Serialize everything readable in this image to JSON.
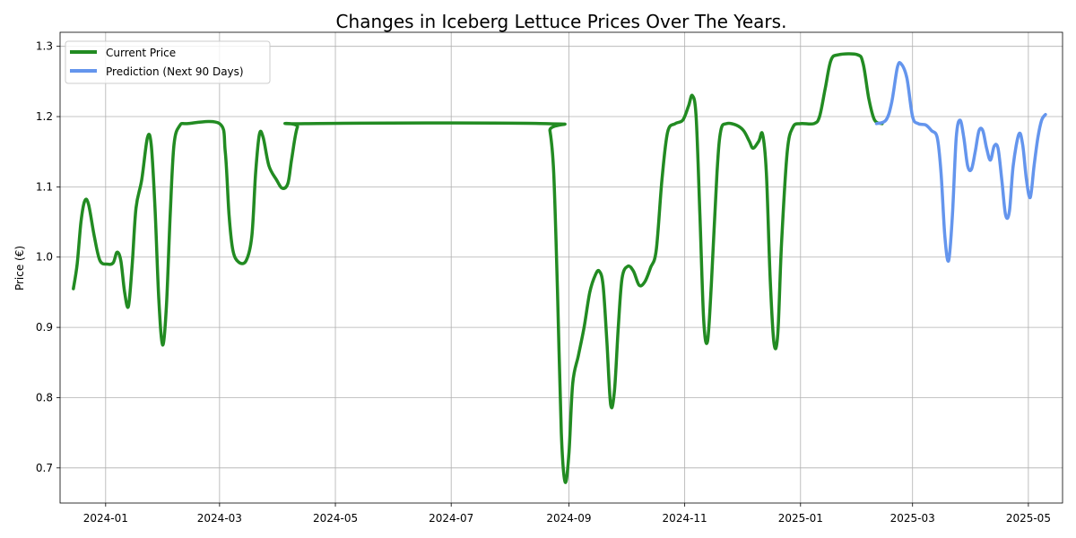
{
  "chart_data": {
    "type": "line",
    "title": "Changes in Iceberg Lettuce Prices Over The Years.",
    "xlabel": "",
    "ylabel": "Price (€)",
    "x_tick_labels": [
      "2024-01",
      "2024-03",
      "2024-05",
      "2024-07",
      "2024-09",
      "2024-11",
      "2025-01",
      "2025-03",
      "2025-05"
    ],
    "x_ticks": [
      "2024-01-01",
      "2024-03-01",
      "2024-05-01",
      "2024-07-01",
      "2024-09-01",
      "2024-11-01",
      "2025-01-01",
      "2025-03-01",
      "2025-05-01"
    ],
    "xlim": [
      "2023-12-08",
      "2025-05-19"
    ],
    "y_ticks": [
      0.7,
      0.8,
      0.9,
      1.0,
      1.1,
      1.2,
      1.3
    ],
    "y_tick_labels": [
      "0.7",
      "0.8",
      "0.9",
      "1.0",
      "1.1",
      "1.2",
      "1.3"
    ],
    "ylim": [
      0.65,
      1.32
    ],
    "grid": true,
    "legend_position": "top-left",
    "series": [
      {
        "name": "Current Price",
        "color": "#228B22",
        "points": [
          [
            "2023-12-15",
            0.955
          ],
          [
            "2023-12-17",
            0.99
          ],
          [
            "2023-12-19",
            1.05
          ],
          [
            "2023-12-21",
            1.08
          ],
          [
            "2023-12-23",
            1.075
          ],
          [
            "2023-12-26",
            1.03
          ],
          [
            "2023-12-29",
            0.995
          ],
          [
            "2024-01-02",
            0.99
          ],
          [
            "2024-01-05",
            0.992
          ],
          [
            "2024-01-07",
            1.007
          ],
          [
            "2024-01-09",
            0.995
          ],
          [
            "2024-01-11",
            0.95
          ],
          [
            "2024-01-13",
            0.93
          ],
          [
            "2024-01-15",
            0.99
          ],
          [
            "2024-01-17",
            1.07
          ],
          [
            "2024-01-20",
            1.11
          ],
          [
            "2024-01-23",
            1.17
          ],
          [
            "2024-01-25",
            1.16
          ],
          [
            "2024-01-27",
            1.07
          ],
          [
            "2024-01-29",
            0.94
          ],
          [
            "2024-01-31",
            0.875
          ],
          [
            "2024-02-02",
            0.93
          ],
          [
            "2024-02-04",
            1.06
          ],
          [
            "2024-02-06",
            1.16
          ],
          [
            "2024-02-09",
            1.187
          ],
          [
            "2024-02-13",
            1.19
          ],
          [
            "2024-03-01",
            1.19
          ],
          [
            "2024-03-04",
            1.15
          ],
          [
            "2024-03-06",
            1.06
          ],
          [
            "2024-03-08",
            1.01
          ],
          [
            "2024-03-11",
            0.993
          ],
          [
            "2024-03-15",
            0.995
          ],
          [
            "2024-03-18",
            1.03
          ],
          [
            "2024-03-20",
            1.12
          ],
          [
            "2024-03-22",
            1.175
          ],
          [
            "2024-03-24",
            1.17
          ],
          [
            "2024-03-27",
            1.13
          ],
          [
            "2024-03-31",
            1.11
          ],
          [
            "2024-04-03",
            1.098
          ],
          [
            "2024-04-06",
            1.105
          ],
          [
            "2024-04-08",
            1.14
          ],
          [
            "2024-04-11",
            1.185
          ],
          [
            "2024-04-15",
            1.19
          ],
          [
            "2024-08-20",
            1.19
          ],
          [
            "2024-08-22",
            1.18
          ],
          [
            "2024-08-24",
            1.12
          ],
          [
            "2024-08-26",
            0.95
          ],
          [
            "2024-08-28",
            0.75
          ],
          [
            "2024-08-30",
            0.68
          ],
          [
            "2024-09-01",
            0.72
          ],
          [
            "2024-09-03",
            0.82
          ],
          [
            "2024-09-06",
            0.86
          ],
          [
            "2024-09-09",
            0.9
          ],
          [
            "2024-09-12",
            0.95
          ],
          [
            "2024-09-15",
            0.975
          ],
          [
            "2024-09-17",
            0.98
          ],
          [
            "2024-09-19",
            0.96
          ],
          [
            "2024-09-21",
            0.88
          ],
          [
            "2024-09-23",
            0.79
          ],
          [
            "2024-09-25",
            0.81
          ],
          [
            "2024-09-27",
            0.9
          ],
          [
            "2024-09-29",
            0.97
          ],
          [
            "2024-10-02",
            0.987
          ],
          [
            "2024-10-05",
            0.98
          ],
          [
            "2024-10-08",
            0.96
          ],
          [
            "2024-10-11",
            0.965
          ],
          [
            "2024-10-14",
            0.985
          ],
          [
            "2024-10-17",
            1.01
          ],
          [
            "2024-10-20",
            1.11
          ],
          [
            "2024-10-23",
            1.178
          ],
          [
            "2024-10-27",
            1.19
          ],
          [
            "2024-10-31",
            1.195
          ],
          [
            "2024-11-03",
            1.215
          ],
          [
            "2024-11-05",
            1.23
          ],
          [
            "2024-11-07",
            1.2
          ],
          [
            "2024-11-09",
            1.06
          ],
          [
            "2024-11-11",
            0.91
          ],
          [
            "2024-11-13",
            0.88
          ],
          [
            "2024-11-15",
            0.96
          ],
          [
            "2024-11-18",
            1.12
          ],
          [
            "2024-11-20",
            1.18
          ],
          [
            "2024-11-23",
            1.19
          ],
          [
            "2024-11-28",
            1.188
          ],
          [
            "2024-12-02",
            1.18
          ],
          [
            "2024-12-05",
            1.165
          ],
          [
            "2024-12-07",
            1.155
          ],
          [
            "2024-12-10",
            1.165
          ],
          [
            "2024-12-12",
            1.175
          ],
          [
            "2024-12-14",
            1.12
          ],
          [
            "2024-12-16",
            0.97
          ],
          [
            "2024-12-18",
            0.878
          ],
          [
            "2024-12-20",
            0.89
          ],
          [
            "2024-12-22",
            1.02
          ],
          [
            "2024-12-25",
            1.15
          ],
          [
            "2024-12-28",
            1.185
          ],
          [
            "2025-01-01",
            1.19
          ],
          [
            "2025-01-08",
            1.19
          ],
          [
            "2025-01-11",
            1.2
          ],
          [
            "2025-01-14",
            1.24
          ],
          [
            "2025-01-17",
            1.28
          ],
          [
            "2025-01-21",
            1.288
          ],
          [
            "2025-01-31",
            1.288
          ],
          [
            "2025-02-03",
            1.275
          ],
          [
            "2025-02-06",
            1.225
          ],
          [
            "2025-02-09",
            1.195
          ],
          [
            "2025-02-13",
            1.19
          ]
        ]
      },
      {
        "name": "Prediction (Next 90 Days)",
        "color": "#6495ED",
        "points": [
          [
            "2025-02-10",
            1.19
          ],
          [
            "2025-02-15",
            1.195
          ],
          [
            "2025-02-18",
            1.22
          ],
          [
            "2025-02-21",
            1.27
          ],
          [
            "2025-02-23",
            1.275
          ],
          [
            "2025-02-26",
            1.255
          ],
          [
            "2025-03-01",
            1.2
          ],
          [
            "2025-03-04",
            1.19
          ],
          [
            "2025-03-08",
            1.188
          ],
          [
            "2025-03-11",
            1.18
          ],
          [
            "2025-03-14",
            1.17
          ],
          [
            "2025-03-16",
            1.12
          ],
          [
            "2025-03-18",
            1.03
          ],
          [
            "2025-03-20",
            0.995
          ],
          [
            "2025-03-22",
            1.06
          ],
          [
            "2025-03-24",
            1.17
          ],
          [
            "2025-03-26",
            1.195
          ],
          [
            "2025-03-28",
            1.17
          ],
          [
            "2025-03-30",
            1.13
          ],
          [
            "2025-04-01",
            1.125
          ],
          [
            "2025-04-03",
            1.15
          ],
          [
            "2025-04-05",
            1.18
          ],
          [
            "2025-04-07",
            1.18
          ],
          [
            "2025-04-09",
            1.155
          ],
          [
            "2025-04-11",
            1.138
          ],
          [
            "2025-04-13",
            1.158
          ],
          [
            "2025-04-15",
            1.155
          ],
          [
            "2025-04-17",
            1.11
          ],
          [
            "2025-04-19",
            1.06
          ],
          [
            "2025-04-21",
            1.065
          ],
          [
            "2025-04-23",
            1.13
          ],
          [
            "2025-04-26",
            1.175
          ],
          [
            "2025-04-28",
            1.16
          ],
          [
            "2025-04-30",
            1.11
          ],
          [
            "2025-05-02",
            1.085
          ],
          [
            "2025-05-04",
            1.13
          ],
          [
            "2025-05-06",
            1.17
          ],
          [
            "2025-05-08",
            1.195
          ],
          [
            "2025-05-10",
            1.203
          ]
        ]
      }
    ]
  }
}
